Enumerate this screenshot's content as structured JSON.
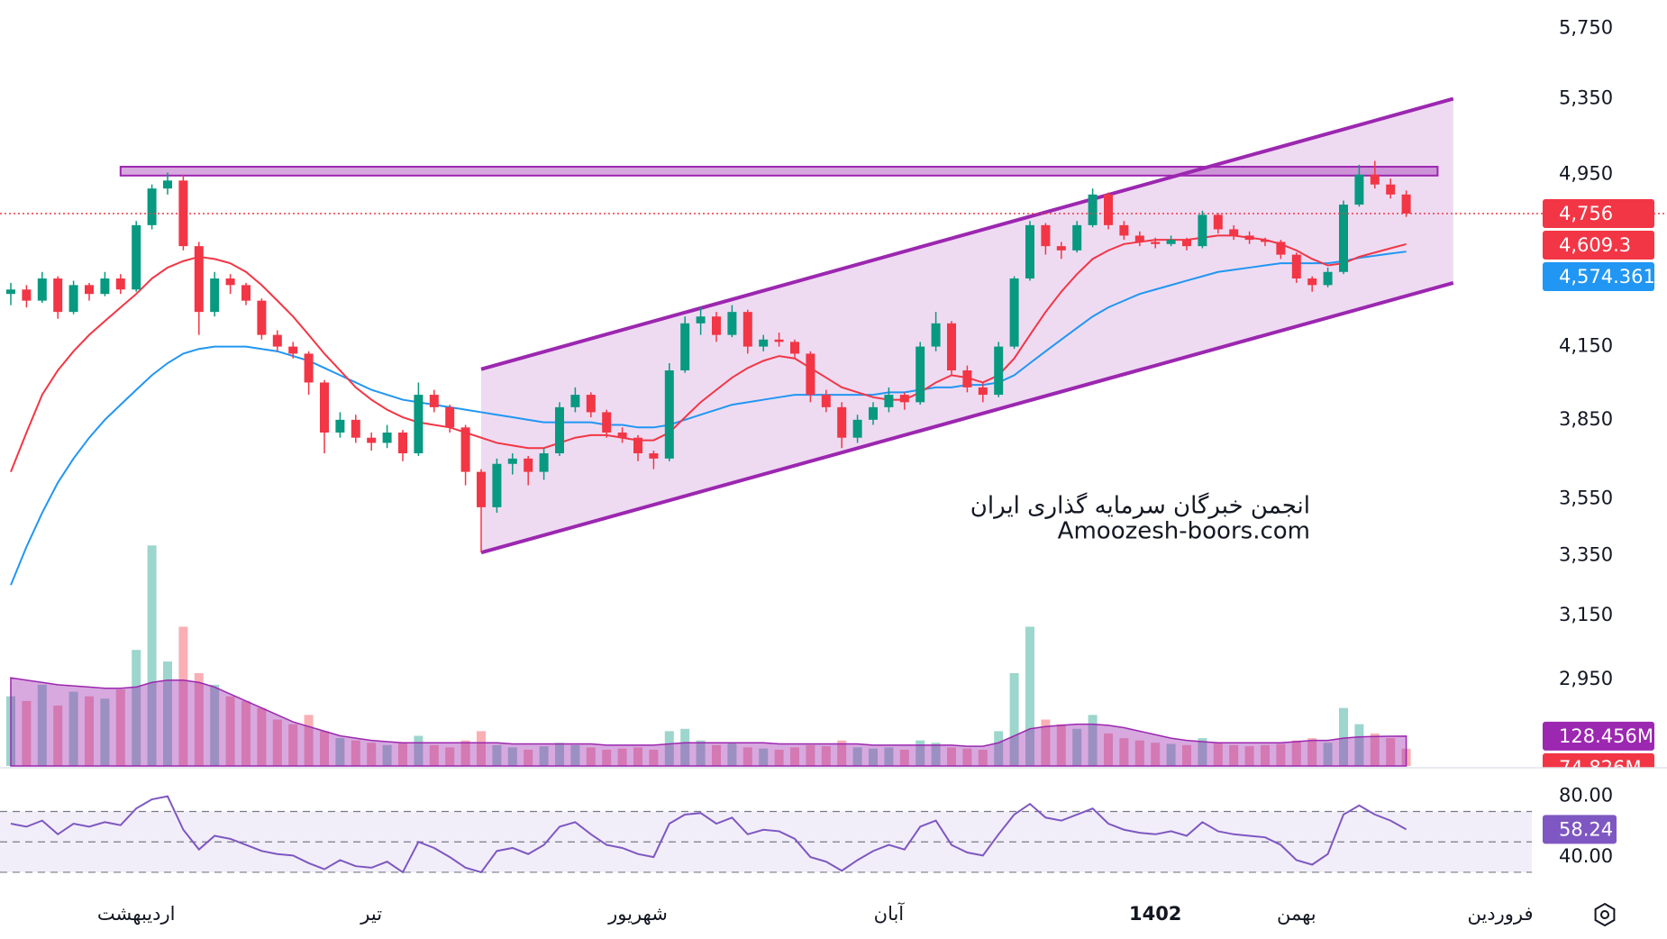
{
  "chart_data": {
    "type": "candlestick",
    "log_scale": true,
    "ylim": [
      2700,
      5920
    ],
    "yticks": [
      {
        "value": 5750,
        "label": "5,750"
      },
      {
        "value": 5350,
        "label": "5,350"
      },
      {
        "value": 4950,
        "label": "4,950"
      },
      {
        "value": 4150,
        "label": "4,150"
      },
      {
        "value": 3850,
        "label": "3,850"
      },
      {
        "value": 3550,
        "label": "3,550"
      },
      {
        "value": 3350,
        "label": "3,350"
      },
      {
        "value": 3150,
        "label": "3,150"
      },
      {
        "value": 2950,
        "label": "2,950"
      }
    ],
    "up_color": "#089981",
    "down_color": "#f23645",
    "ohlc": [
      [
        4380,
        4430,
        4330,
        4400
      ],
      [
        4400,
        4420,
        4320,
        4350
      ],
      [
        4350,
        4480,
        4340,
        4450
      ],
      [
        4450,
        4460,
        4270,
        4300
      ],
      [
        4300,
        4440,
        4290,
        4420
      ],
      [
        4420,
        4430,
        4350,
        4380
      ],
      [
        4380,
        4480,
        4370,
        4450
      ],
      [
        4450,
        4470,
        4380,
        4400
      ],
      [
        4400,
        4720,
        4390,
        4700
      ],
      [
        4700,
        4900,
        4680,
        4880
      ],
      [
        4880,
        4960,
        4850,
        4920
      ],
      [
        4920,
        4950,
        4580,
        4600
      ],
      [
        4600,
        4620,
        4200,
        4300
      ],
      [
        4300,
        4480,
        4280,
        4450
      ],
      [
        4450,
        4470,
        4380,
        4420
      ],
      [
        4420,
        4430,
        4330,
        4350
      ],
      [
        4350,
        4360,
        4180,
        4200
      ],
      [
        4200,
        4220,
        4130,
        4150
      ],
      [
        4150,
        4170,
        4100,
        4120
      ],
      [
        4120,
        4130,
        3950,
        4000
      ],
      [
        4000,
        4010,
        3720,
        3800
      ],
      [
        3800,
        3880,
        3780,
        3850
      ],
      [
        3850,
        3870,
        3760,
        3780
      ],
      [
        3780,
        3800,
        3730,
        3760
      ],
      [
        3760,
        3830,
        3740,
        3800
      ],
      [
        3800,
        3810,
        3690,
        3720
      ],
      [
        3720,
        4000,
        3710,
        3950
      ],
      [
        3950,
        3970,
        3880,
        3900
      ],
      [
        3900,
        3910,
        3800,
        3820
      ],
      [
        3820,
        3830,
        3600,
        3650
      ],
      [
        3650,
        3660,
        3360,
        3520
      ],
      [
        3520,
        3700,
        3500,
        3680
      ],
      [
        3680,
        3720,
        3640,
        3700
      ],
      [
        3700,
        3710,
        3600,
        3650
      ],
      [
        3650,
        3740,
        3620,
        3720
      ],
      [
        3720,
        3920,
        3710,
        3900
      ],
      [
        3900,
        3980,
        3880,
        3950
      ],
      [
        3950,
        3960,
        3860,
        3880
      ],
      [
        3880,
        3890,
        3780,
        3800
      ],
      [
        3800,
        3820,
        3760,
        3780
      ],
      [
        3780,
        3790,
        3690,
        3720
      ],
      [
        3720,
        3730,
        3660,
        3700
      ],
      [
        3700,
        4080,
        3690,
        4050
      ],
      [
        4050,
        4280,
        4040,
        4250
      ],
      [
        4250,
        4320,
        4200,
        4280
      ],
      [
        4280,
        4300,
        4170,
        4200
      ],
      [
        4200,
        4330,
        4190,
        4300
      ],
      [
        4300,
        4310,
        4120,
        4150
      ],
      [
        4150,
        4200,
        4130,
        4180
      ],
      [
        4180,
        4210,
        4150,
        4170
      ],
      [
        4170,
        4180,
        4100,
        4120
      ],
      [
        4120,
        4130,
        3920,
        3950
      ],
      [
        3950,
        3970,
        3880,
        3900
      ],
      [
        3900,
        3920,
        3740,
        3780
      ],
      [
        3780,
        3870,
        3760,
        3850
      ],
      [
        3850,
        3920,
        3830,
        3900
      ],
      [
        3900,
        3980,
        3880,
        3950
      ],
      [
        3950,
        3960,
        3890,
        3920
      ],
      [
        3920,
        4170,
        3910,
        4150
      ],
      [
        4150,
        4300,
        4130,
        4250
      ],
      [
        4250,
        4260,
        4030,
        4050
      ],
      [
        4050,
        4070,
        3960,
        3980
      ],
      [
        3980,
        4000,
        3920,
        3950
      ],
      [
        3950,
        4170,
        3940,
        4150
      ],
      [
        4150,
        4460,
        4140,
        4450
      ],
      [
        4450,
        4720,
        4440,
        4700
      ],
      [
        4700,
        4710,
        4560,
        4600
      ],
      [
        4600,
        4620,
        4540,
        4580
      ],
      [
        4580,
        4720,
        4570,
        4700
      ],
      [
        4700,
        4880,
        4690,
        4850
      ],
      [
        4850,
        4860,
        4680,
        4700
      ],
      [
        4700,
        4720,
        4630,
        4650
      ],
      [
        4650,
        4670,
        4600,
        4620
      ],
      [
        4620,
        4640,
        4590,
        4610
      ],
      [
        4610,
        4650,
        4600,
        4630
      ],
      [
        4630,
        4640,
        4580,
        4600
      ],
      [
        4600,
        4770,
        4590,
        4750
      ],
      [
        4750,
        4760,
        4660,
        4680
      ],
      [
        4680,
        4700,
        4630,
        4650
      ],
      [
        4650,
        4670,
        4610,
        4630
      ],
      [
        4630,
        4640,
        4600,
        4620
      ],
      [
        4620,
        4630,
        4540,
        4560
      ],
      [
        4560,
        4570,
        4430,
        4450
      ],
      [
        4450,
        4460,
        4390,
        4420
      ],
      [
        4420,
        4500,
        4410,
        4480
      ],
      [
        4480,
        4820,
        4470,
        4800
      ],
      [
        4800,
        5000,
        4790,
        4950
      ],
      [
        4950,
        5020,
        4880,
        4900
      ],
      [
        4900,
        4930,
        4830,
        4850
      ],
      [
        4850,
        4870,
        4740,
        4756
      ]
    ],
    "close_value_labels": {
      "89": "4,756"
    },
    "ma_fast": {
      "color": "#f23645",
      "values": [
        3650,
        3800,
        3950,
        4050,
        4130,
        4200,
        4260,
        4320,
        4380,
        4450,
        4500,
        4530,
        4550,
        4540,
        4520,
        4480,
        4420,
        4350,
        4280,
        4200,
        4120,
        4050,
        3980,
        3930,
        3890,
        3860,
        3840,
        3830,
        3820,
        3800,
        3780,
        3760,
        3750,
        3740,
        3740,
        3760,
        3780,
        3790,
        3790,
        3780,
        3770,
        3770,
        3800,
        3860,
        3920,
        3970,
        4020,
        4060,
        4090,
        4110,
        4100,
        4060,
        4020,
        3980,
        3960,
        3940,
        3930,
        3930,
        3960,
        4000,
        4030,
        4020,
        4000,
        4030,
        4100,
        4200,
        4300,
        4390,
        4470,
        4540,
        4580,
        4610,
        4620,
        4630,
        4630,
        4630,
        4640,
        4650,
        4650,
        4640,
        4630,
        4610,
        4580,
        4540,
        4510,
        4520,
        4550,
        4570,
        4590,
        4609.3
      ],
      "value_labels": {
        "89": "4,609.3"
      }
    },
    "ma_slow": {
      "color": "#2196f3",
      "values": [
        3250,
        3380,
        3500,
        3610,
        3700,
        3780,
        3850,
        3910,
        3970,
        4030,
        4080,
        4120,
        4140,
        4150,
        4150,
        4150,
        4140,
        4130,
        4110,
        4090,
        4060,
        4030,
        4000,
        3970,
        3950,
        3930,
        3920,
        3910,
        3900,
        3890,
        3880,
        3870,
        3860,
        3850,
        3840,
        3840,
        3840,
        3840,
        3830,
        3830,
        3820,
        3820,
        3830,
        3850,
        3870,
        3890,
        3910,
        3920,
        3930,
        3940,
        3950,
        3950,
        3950,
        3950,
        3950,
        3950,
        3960,
        3960,
        3970,
        3980,
        3980,
        3990,
        3990,
        4000,
        4030,
        4080,
        4130,
        4180,
        4230,
        4280,
        4320,
        4350,
        4380,
        4400,
        4420,
        4440,
        4460,
        4480,
        4490,
        4500,
        4510,
        4520,
        4520,
        4520,
        4520,
        4530,
        4545,
        4555,
        4565,
        4574.361
      ],
      "value_labels": {
        "89": "4,574.361"
      }
    },
    "volume": {
      "lim": [
        0,
        3300
      ],
      "values": [
        300,
        280,
        350,
        260,
        320,
        300,
        290,
        330,
        500,
        950,
        450,
        600,
        400,
        350,
        300,
        280,
        250,
        200,
        180,
        220,
        150,
        120,
        110,
        100,
        90,
        100,
        130,
        90,
        80,
        110,
        150,
        90,
        80,
        70,
        85,
        100,
        90,
        80,
        70,
        75,
        80,
        70,
        150,
        160,
        110,
        90,
        100,
        80,
        75,
        70,
        80,
        90,
        85,
        110,
        80,
        75,
        80,
        70,
        110,
        100,
        80,
        75,
        70,
        150,
        400,
        600,
        200,
        180,
        160,
        220,
        140,
        120,
        110,
        100,
        95,
        90,
        120,
        100,
        90,
        85,
        90,
        95,
        110,
        120,
        100,
        250,
        180,
        140,
        120,
        74.826
      ],
      "value_labels": {
        "89": "74.826M"
      }
    },
    "volume_ma": {
      "color": "#9c27b0",
      "values": [
        380,
        370,
        360,
        350,
        345,
        340,
        335,
        335,
        340,
        360,
        370,
        370,
        360,
        340,
        310,
        280,
        250,
        220,
        190,
        170,
        150,
        130,
        120,
        110,
        105,
        100,
        100,
        100,
        100,
        100,
        100,
        100,
        95,
        95,
        95,
        95,
        95,
        95,
        90,
        90,
        90,
        90,
        95,
        100,
        100,
        100,
        100,
        100,
        100,
        95,
        95,
        95,
        95,
        95,
        95,
        90,
        90,
        90,
        90,
        90,
        90,
        85,
        85,
        100,
        130,
        160,
        170,
        175,
        180,
        180,
        175,
        165,
        150,
        135,
        120,
        110,
        105,
        100,
        100,
        100,
        100,
        100,
        105,
        110,
        110,
        120,
        125,
        127,
        128,
        128.456
      ],
      "value_labels": {
        "89": "128.456M"
      }
    },
    "rsi": {
      "color": "#7e57c2",
      "ylim": [
        27,
        97
      ],
      "yticks": [
        {
          "value": 80,
          "label": "80.00"
        },
        {
          "value": 40,
          "label": "40.00"
        }
      ],
      "levels": [
        70,
        50,
        30
      ],
      "values": [
        62,
        60,
        64,
        55,
        62,
        60,
        63,
        61,
        72,
        78,
        80,
        58,
        45,
        54,
        52,
        48,
        44,
        42,
        41,
        36,
        32,
        38,
        34,
        33,
        37,
        30,
        50,
        46,
        40,
        33,
        30,
        44,
        46,
        42,
        48,
        60,
        63,
        55,
        48,
        46,
        42,
        40,
        62,
        68,
        69,
        62,
        66,
        55,
        58,
        57,
        52,
        40,
        37,
        31,
        38,
        44,
        48,
        45,
        60,
        64,
        48,
        43,
        41,
        55,
        68,
        75,
        66,
        64,
        68,
        72,
        62,
        58,
        56,
        55,
        57,
        54,
        63,
        57,
        55,
        54,
        53,
        48,
        38,
        35,
        42,
        68,
        74,
        68,
        64,
        58.24
      ]
    },
    "channel": {
      "color": "#9c27b0",
      "start": 30,
      "end": 92,
      "upper": [
        4055,
        5350
      ],
      "lower": [
        3360,
        4430
      ]
    },
    "resistance": {
      "color": "#9c27b0",
      "start": 7,
      "end": 91,
      "top": 4990,
      "bottom": 4945
    },
    "x_labels": [
      {
        "index": 8,
        "label": "اردیبهشت"
      },
      {
        "index": 23,
        "label": "تیر"
      },
      {
        "index": 40,
        "label": "شهریور"
      },
      {
        "index": 56,
        "label": "آبان"
      },
      {
        "index": 73,
        "label": "1402"
      },
      {
        "index": 82,
        "label": "بهمن"
      },
      {
        "index": 95,
        "label": "فروردین"
      }
    ],
    "watermark": [
      "انجمن خبرگان سرمایه گذاری ایران",
      "Amoozesh-boors.com"
    ]
  }
}
